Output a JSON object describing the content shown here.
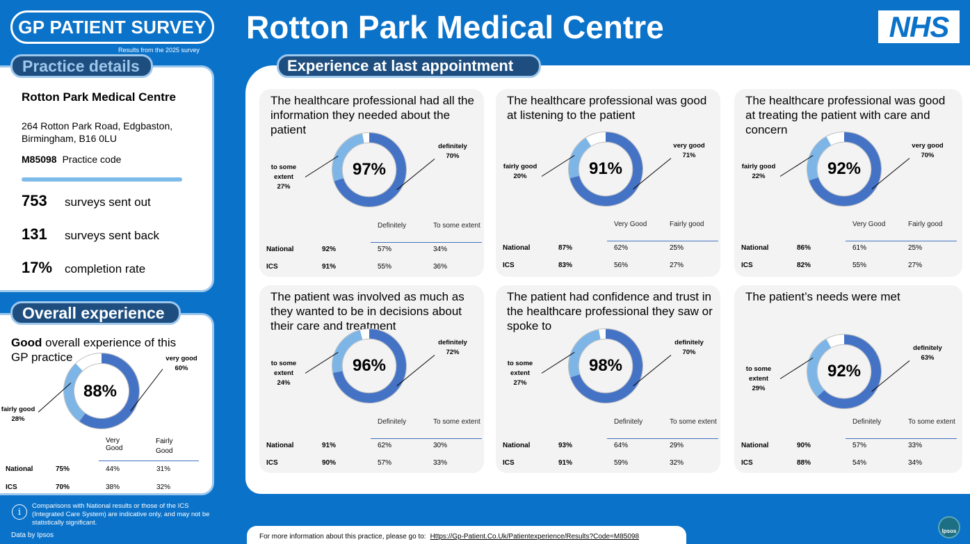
{
  "header": {
    "survey_logo": "GP PATIENT SURVEY",
    "survey_sub": "Results from the 2025 survey",
    "title": "Rotton Park Medical Centre",
    "nhs_logo": "NHS"
  },
  "practice": {
    "tab": "Practice details",
    "name": "Rotton Park Medical Centre",
    "address_line1": "264 Rotton Park Road, Edgbaston,",
    "address_line2": "Birmingham, B16 0LU",
    "code": "M85098",
    "code_label": "Practice code",
    "stats": [
      {
        "num": "753",
        "label": "surveys sent out"
      },
      {
        "num": "131",
        "label": "surveys sent back"
      },
      {
        "num": "17%",
        "label": "completion rate"
      }
    ]
  },
  "overall": {
    "tab": "Overall experience",
    "text_bold": "Good",
    "text_rest": " overall experience of this GP practice",
    "pct": "88%",
    "label_a": "very good",
    "label_a_val": "60%",
    "label_b": "fairly good",
    "label_b_val": "28%",
    "values": {
      "a": 60,
      "b": 28
    },
    "head_a": "Very Good",
    "head_b": "Fairly Good",
    "rows": [
      {
        "name": "National",
        "total": "75%",
        "a": "44%",
        "b": "31%"
      },
      {
        "name": "ICS",
        "total": "70%",
        "a": "38%",
        "b": "32%"
      }
    ]
  },
  "main_tab": "Experience at last appointment",
  "chart_data": [
    {
      "type": "pie",
      "title": "The healthcare professional had all the information they needed about the patient",
      "total": "97%",
      "a_label": "definitely",
      "a": 70,
      "b_label": "to some extent",
      "b": 27,
      "head_a": "Definitely",
      "head_b": "To some extent",
      "rows": [
        {
          "name": "National",
          "total": "92%",
          "a": "57%",
          "b": "34%"
        },
        {
          "name": "ICS",
          "total": "91%",
          "a": "55%",
          "b": "36%"
        }
      ]
    },
    {
      "type": "pie",
      "title": "The healthcare professional was good at listening to the patient",
      "total": "91%",
      "a_label": "very good",
      "a": 71,
      "b_label": "fairly good",
      "b": 20,
      "head_a": "Very Good",
      "head_b": "Fairly good",
      "rows": [
        {
          "name": "National",
          "total": "87%",
          "a": "62%",
          "b": "25%"
        },
        {
          "name": "ICS",
          "total": "83%",
          "a": "56%",
          "b": "27%"
        }
      ]
    },
    {
      "type": "pie",
      "title": "The healthcare professional was good at treating the patient with care and concern",
      "total": "92%",
      "a_label": "very good",
      "a": 70,
      "b_label": "fairly good",
      "b": 22,
      "head_a": "Very Good",
      "head_b": "Fairly good",
      "rows": [
        {
          "name": "National",
          "total": "86%",
          "a": "61%",
          "b": "25%"
        },
        {
          "name": "ICS",
          "total": "82%",
          "a": "55%",
          "b": "27%"
        }
      ]
    },
    {
      "type": "pie",
      "title": "The patient was involved as much as they wanted to be in decisions about their care and treatment",
      "total": "96%",
      "a_label": "definitely",
      "a": 72,
      "b_label": "to some extent",
      "b": 24,
      "head_a": "Definitely",
      "head_b": "To some extent",
      "rows": [
        {
          "name": "National",
          "total": "91%",
          "a": "62%",
          "b": "30%"
        },
        {
          "name": "ICS",
          "total": "90%",
          "a": "57%",
          "b": "33%"
        }
      ]
    },
    {
      "type": "pie",
      "title": "The patient had confidence and trust in the healthcare professional they saw or spoke to",
      "total": "98%",
      "a_label": "definitely",
      "a": 70,
      "b_label": "to some extent",
      "b": 27,
      "head_a": "Definitely",
      "head_b": "To some extent",
      "rows": [
        {
          "name": "National",
          "total": "93%",
          "a": "64%",
          "b": "29%"
        },
        {
          "name": "ICS",
          "total": "91%",
          "a": "59%",
          "b": "32%"
        }
      ]
    },
    {
      "type": "pie",
      "title": "The patient’s needs were met",
      "total": "92%",
      "a_label": "definitely",
      "a": 63,
      "b_label": "to some extent",
      "b": 29,
      "head_a": "Definitely",
      "head_b": "To some extent",
      "rows": [
        {
          "name": "National",
          "total": "90%",
          "a": "57%",
          "b": "33%"
        },
        {
          "name": "ICS",
          "total": "88%",
          "a": "54%",
          "b": "34%"
        }
      ]
    }
  ],
  "colors": {
    "dark_segment": "#4472c4",
    "light_segment": "#7db5e6",
    "rest_segment": "#ffffff"
  },
  "footer": {
    "note": "Comparisons with National results or those of the ICS (Integrated Care System) are indicative only, and may not be statistically significant.",
    "data_by": "Data by Ipsos",
    "more_info": "For more information about this practice, please go to:",
    "link": "Https://Gp-Patient.Co.Uk/Patientexperience/Results?Code=M85098",
    "ipsos": "Ipsos"
  }
}
